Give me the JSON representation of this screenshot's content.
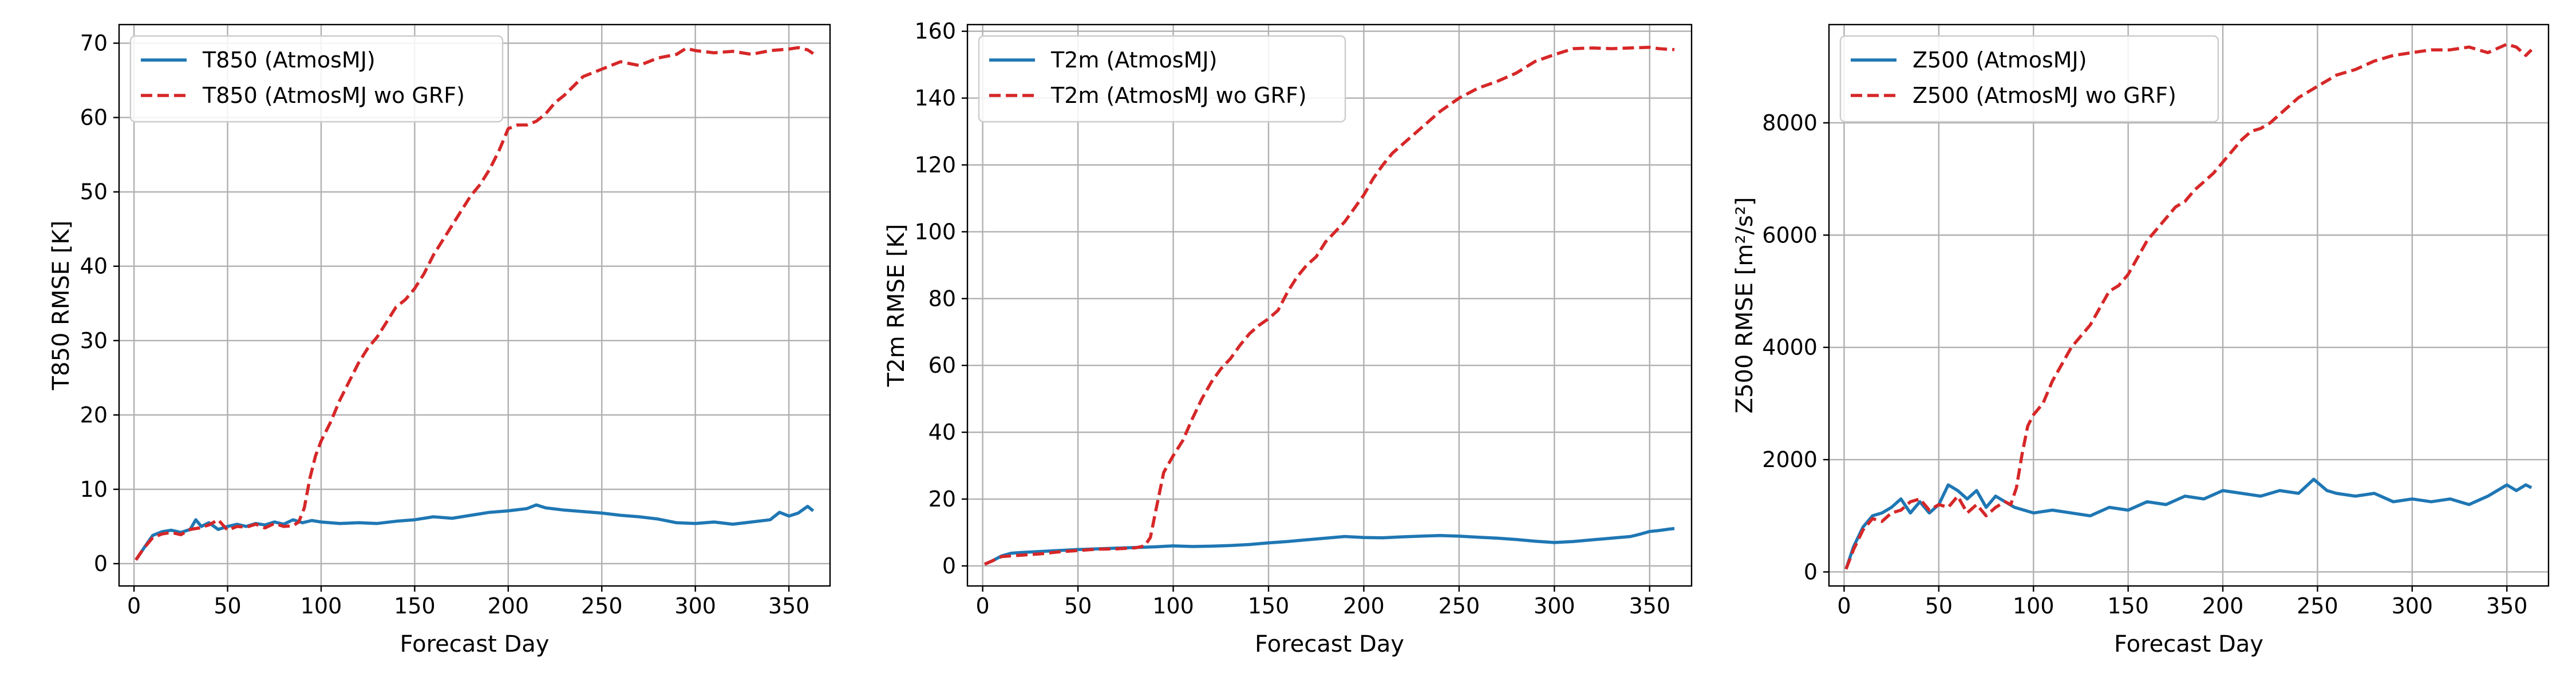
{
  "chart_data": [
    {
      "type": "line",
      "xlabel": "Forecast Day",
      "ylabel": "T850 RMSE [K]",
      "xlim": [
        -8,
        372
      ],
      "ylim": [
        -3,
        72.5
      ],
      "xticks": [
        0,
        50,
        100,
        150,
        200,
        250,
        300,
        350
      ],
      "yticks": [
        0,
        10,
        20,
        30,
        40,
        50,
        60,
        70
      ],
      "grid": true,
      "legend_position": "top-left",
      "series": [
        {
          "name": "T850 (AtmosMJ)",
          "color": "#1f77b4",
          "style": "solid",
          "x": [
            1,
            5,
            10,
            15,
            20,
            25,
            30,
            33,
            36,
            40,
            45,
            50,
            55,
            60,
            65,
            70,
            75,
            80,
            85,
            90,
            95,
            100,
            110,
            120,
            130,
            140,
            150,
            160,
            170,
            180,
            190,
            200,
            210,
            215,
            220,
            230,
            240,
            250,
            260,
            270,
            280,
            290,
            300,
            310,
            320,
            330,
            340,
            345,
            350,
            355,
            360,
            363
          ],
          "y": [
            0.5,
            2.0,
            3.8,
            4.3,
            4.5,
            4.2,
            4.6,
            5.9,
            5.0,
            5.5,
            4.6,
            5.0,
            5.3,
            5.0,
            5.4,
            5.2,
            5.6,
            5.3,
            5.9,
            5.5,
            5.8,
            5.6,
            5.4,
            5.5,
            5.4,
            5.7,
            5.9,
            6.3,
            6.1,
            6.5,
            6.9,
            7.1,
            7.4,
            7.9,
            7.5,
            7.2,
            7.0,
            6.8,
            6.5,
            6.3,
            6.0,
            5.5,
            5.4,
            5.6,
            5.3,
            5.6,
            5.9,
            6.9,
            6.4,
            6.8,
            7.7,
            7.1
          ]
        },
        {
          "name": "T850 (AtmosMJ wo GRF)",
          "color": "#d62728",
          "style": "dashed",
          "x": [
            1,
            5,
            10,
            15,
            20,
            25,
            30,
            35,
            40,
            45,
            50,
            55,
            60,
            65,
            70,
            75,
            80,
            85,
            88,
            91,
            94,
            97,
            100,
            105,
            110,
            115,
            120,
            125,
            130,
            135,
            140,
            145,
            150,
            155,
            160,
            165,
            170,
            175,
            180,
            185,
            190,
            195,
            200,
            205,
            210,
            215,
            220,
            225,
            230,
            240,
            250,
            260,
            270,
            280,
            290,
            295,
            300,
            310,
            320,
            330,
            340,
            350,
            355,
            360,
            363
          ],
          "y": [
            0.5,
            2.0,
            3.5,
            4.0,
            4.2,
            3.9,
            4.6,
            4.8,
            5.2,
            5.9,
            4.5,
            5.0,
            4.9,
            5.3,
            4.8,
            5.4,
            5.0,
            5.1,
            5.6,
            7.5,
            11.5,
            14.5,
            16.5,
            19.0,
            22.0,
            24.5,
            27.0,
            29.0,
            30.5,
            32.5,
            34.5,
            35.5,
            37.0,
            39.0,
            41.5,
            43.5,
            45.5,
            47.5,
            49.5,
            51.0,
            53.0,
            55.5,
            58.5,
            59.0,
            59.0,
            59.5,
            60.5,
            62.0,
            63.0,
            65.5,
            66.5,
            67.5,
            67.0,
            68.0,
            68.5,
            69.3,
            69.0,
            68.7,
            68.9,
            68.5,
            69.0,
            69.2,
            69.4,
            69.1,
            68.6
          ]
        }
      ]
    },
    {
      "type": "line",
      "xlabel": "Forecast Day",
      "ylabel": "T2m RMSE [K]",
      "xlim": [
        -8,
        372
      ],
      "ylim": [
        -6,
        162
      ],
      "xticks": [
        0,
        50,
        100,
        150,
        200,
        250,
        300,
        350
      ],
      "yticks": [
        0,
        20,
        40,
        60,
        80,
        100,
        120,
        140,
        160
      ],
      "grid": true,
      "legend_position": "top-left",
      "series": [
        {
          "name": "T2m (AtmosMJ)",
          "color": "#1f77b4",
          "style": "solid",
          "x": [
            1,
            5,
            10,
            15,
            20,
            30,
            40,
            50,
            60,
            70,
            80,
            90,
            100,
            110,
            120,
            130,
            140,
            150,
            160,
            170,
            180,
            190,
            200,
            210,
            220,
            230,
            240,
            250,
            260,
            270,
            280,
            290,
            300,
            310,
            320,
            330,
            340,
            345,
            350,
            355,
            360,
            363
          ],
          "y": [
            0.5,
            1.5,
            3.0,
            3.8,
            4.0,
            4.3,
            4.6,
            4.9,
            5.1,
            5.3,
            5.5,
            5.7,
            6.0,
            5.8,
            5.9,
            6.1,
            6.4,
            6.9,
            7.3,
            7.8,
            8.3,
            8.8,
            8.5,
            8.4,
            8.7,
            8.9,
            9.1,
            8.9,
            8.6,
            8.3,
            7.9,
            7.4,
            7.0,
            7.3,
            7.8,
            8.3,
            8.8,
            9.5,
            10.3,
            10.6,
            11.0,
            11.2
          ]
        },
        {
          "name": "T2m (AtmosMJ wo GRF)",
          "color": "#d62728",
          "style": "dashed",
          "x": [
            1,
            5,
            10,
            20,
            30,
            40,
            50,
            60,
            70,
            80,
            85,
            88,
            91,
            95,
            100,
            105,
            110,
            115,
            120,
            125,
            130,
            135,
            140,
            145,
            150,
            155,
            160,
            165,
            170,
            175,
            180,
            185,
            190,
            195,
            200,
            205,
            210,
            215,
            220,
            230,
            240,
            250,
            260,
            270,
            280,
            290,
            300,
            310,
            320,
            330,
            340,
            350,
            355,
            360,
            363
          ],
          "y": [
            0.5,
            1.5,
            2.8,
            3.2,
            3.6,
            4.2,
            4.6,
            5.0,
            5.1,
            5.4,
            6.0,
            8.5,
            17.0,
            28.0,
            33.0,
            37.5,
            44.0,
            50.0,
            55.0,
            59.0,
            62.0,
            66.0,
            69.5,
            72.0,
            74.0,
            76.5,
            82.0,
            86.5,
            90.0,
            92.5,
            97.0,
            100.0,
            103.0,
            107.0,
            111.0,
            116.0,
            120.0,
            123.5,
            126.0,
            131.0,
            136.0,
            140.0,
            143.0,
            145.0,
            147.5,
            151.0,
            153.0,
            154.8,
            155.0,
            154.8,
            155.0,
            155.2,
            154.8,
            154.6,
            154.5
          ]
        }
      ]
    },
    {
      "type": "line",
      "xlabel": "Forecast Day",
      "ylabel": "Z500 RMSE [m²/s²]",
      "xlim": [
        -8,
        372
      ],
      "ylim": [
        -250,
        9750
      ],
      "xticks": [
        0,
        50,
        100,
        150,
        200,
        250,
        300,
        350
      ],
      "yticks": [
        0,
        2000,
        4000,
        6000,
        8000
      ],
      "grid": true,
      "legend_position": "top-left",
      "series": [
        {
          "name": "Z500 (AtmosMJ)",
          "color": "#1f77b4",
          "style": "solid",
          "x": [
            1,
            5,
            10,
            15,
            20,
            25,
            30,
            35,
            40,
            45,
            50,
            55,
            60,
            65,
            70,
            75,
            80,
            90,
            100,
            110,
            120,
            130,
            140,
            150,
            160,
            170,
            180,
            190,
            200,
            210,
            220,
            230,
            240,
            248,
            255,
            260,
            270,
            280,
            290,
            300,
            310,
            320,
            330,
            340,
            350,
            355,
            360,
            363
          ],
          "y": [
            50,
            450,
            800,
            1000,
            1050,
            1150,
            1300,
            1050,
            1250,
            1050,
            1200,
            1550,
            1450,
            1300,
            1450,
            1150,
            1350,
            1150,
            1050,
            1100,
            1050,
            1000,
            1150,
            1100,
            1250,
            1200,
            1350,
            1300,
            1450,
            1400,
            1350,
            1450,
            1400,
            1650,
            1450,
            1400,
            1350,
            1400,
            1250,
            1300,
            1250,
            1300,
            1200,
            1350,
            1550,
            1450,
            1550,
            1500
          ]
        },
        {
          "name": "Z500 (AtmosMJ wo GRF)",
          "color": "#d62728",
          "style": "dashed",
          "x": [
            1,
            5,
            10,
            15,
            20,
            25,
            30,
            35,
            40,
            45,
            50,
            55,
            60,
            65,
            70,
            75,
            80,
            85,
            88,
            91,
            94,
            97,
            100,
            105,
            110,
            115,
            120,
            125,
            130,
            135,
            140,
            145,
            150,
            155,
            160,
            165,
            170,
            175,
            180,
            185,
            190,
            195,
            200,
            205,
            210,
            215,
            220,
            225,
            230,
            240,
            250,
            260,
            270,
            280,
            290,
            300,
            310,
            320,
            330,
            340,
            350,
            355,
            360,
            363
          ],
          "y": [
            50,
            400,
            750,
            950,
            900,
            1050,
            1100,
            1250,
            1300,
            1100,
            1200,
            1150,
            1350,
            1050,
            1200,
            1000,
            1150,
            1250,
            1200,
            1500,
            2100,
            2600,
            2800,
            3000,
            3400,
            3700,
            4000,
            4200,
            4400,
            4700,
            5000,
            5100,
            5300,
            5600,
            5900,
            6100,
            6300,
            6500,
            6600,
            6800,
            6950,
            7100,
            7300,
            7500,
            7700,
            7850,
            7900,
            8000,
            8150,
            8450,
            8650,
            8850,
            8950,
            9100,
            9200,
            9250,
            9300,
            9300,
            9350,
            9250,
            9400,
            9350,
            9200,
            9300
          ]
        }
      ]
    }
  ]
}
